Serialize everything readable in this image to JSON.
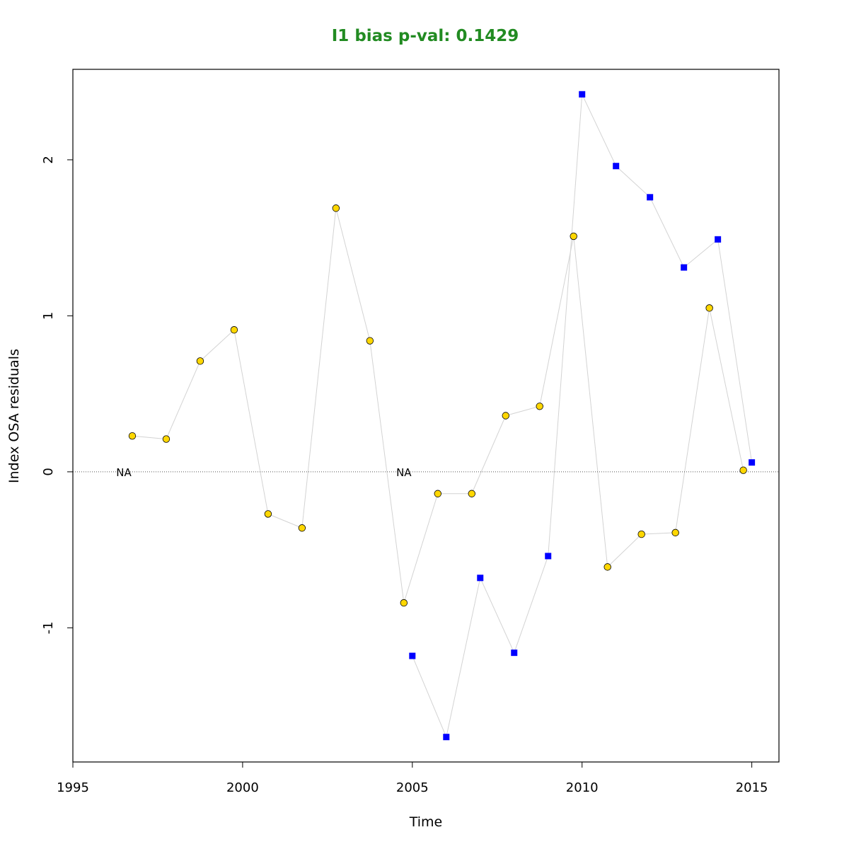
{
  "title_color": "#228B22",
  "chart_data": {
    "type": "scatter",
    "title": "I1 bias p-val: 0.1429",
    "xlabel": "Time",
    "ylabel": "Index OSA residuals",
    "xlim": [
      1995,
      2015.8
    ],
    "ylim": [
      -1.86,
      2.58
    ],
    "x_ticks": [
      1995,
      2000,
      2005,
      2010,
      2015
    ],
    "y_ticks": [
      -1,
      0,
      1,
      2
    ],
    "reference_line_y": 0,
    "grid": false,
    "connector_color": "#d3d3d3",
    "series": [
      {
        "marker": "circle",
        "color": "#FFD700",
        "x": [
          1995.75,
          1996.75,
          1997.75,
          1998.75,
          1999.75,
          2000.75,
          2001.75,
          2002.75,
          2003.75,
          2004.75,
          2005.75,
          2006.75,
          2007.75,
          2008.75,
          2009.75,
          2010.75,
          2011.75,
          2012.75,
          2013.75,
          2014.75
        ],
        "y": [
          null,
          0.23,
          0.21,
          0.71,
          0.91,
          -0.27,
          -0.36,
          1.69,
          0.84,
          -0.84,
          -0.14,
          -0.14,
          0.36,
          0.42,
          1.51,
          -0.61,
          -0.4,
          -0.39,
          1.05,
          0.01
        ]
      },
      {
        "marker": "square",
        "color": "#0000FF",
        "x": [
          2005,
          2006,
          2007,
          2008,
          2009,
          2010,
          2011,
          2012,
          2013,
          2014,
          2015
        ],
        "y": [
          -1.18,
          -1.7,
          -0.68,
          -1.16,
          -0.54,
          2.42,
          1.96,
          1.76,
          1.31,
          1.49,
          0.06
        ]
      }
    ],
    "annotations": [
      {
        "text": "NA",
        "x": 1996.5,
        "y": 0
      },
      {
        "text": "NA",
        "x": 2004.75,
        "y": 0
      }
    ]
  }
}
